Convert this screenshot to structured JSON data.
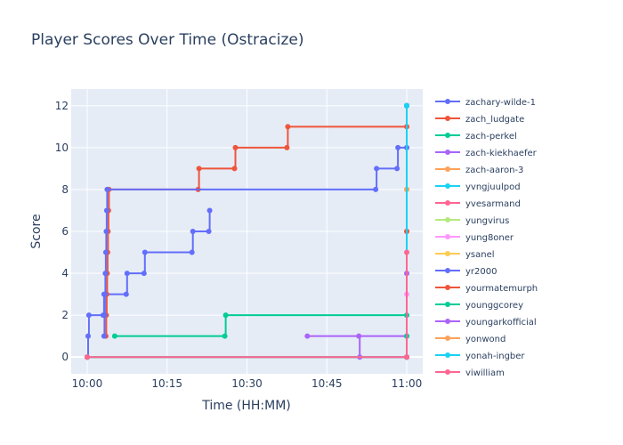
{
  "chart_data": {
    "type": "line",
    "title": "Player Scores Over Time (Ostracize)",
    "xlabel": "Time (HH:MM)",
    "ylabel": "Score",
    "xlim": [
      "09:57",
      "11:03"
    ],
    "ylim": [
      -0.8,
      12.8
    ],
    "x_ticks": [
      "10:00",
      "10:15",
      "10:30",
      "10:45",
      "11:00"
    ],
    "y_ticks": [
      0,
      2,
      4,
      6,
      8,
      10,
      12
    ],
    "grid": true,
    "legend_position": "right",
    "line_shape": "step",
    "series": [
      {
        "name": "zachary-wilde-1",
        "color": "#636efa",
        "points": [
          [
            "10:00:00",
            0
          ],
          [
            "10:00:10",
            1
          ],
          [
            "10:00:20",
            2
          ],
          [
            "10:03:00",
            2
          ],
          [
            "10:03:10",
            3
          ],
          [
            "10:07:20",
            3
          ],
          [
            "10:07:30",
            4
          ],
          [
            "10:10:40",
            4
          ],
          [
            "10:10:50",
            5
          ],
          [
            "10:19:40",
            5
          ],
          [
            "10:19:50",
            6
          ],
          [
            "10:22:50",
            6
          ],
          [
            "10:23:00",
            7
          ]
        ]
      },
      {
        "name": "zach_ludgate",
        "color": "#ef553b",
        "points": [
          [
            "10:03:30",
            1
          ],
          [
            "10:03:35",
            2
          ],
          [
            "10:03:40",
            3
          ],
          [
            "10:03:45",
            4
          ],
          [
            "10:03:50",
            5
          ],
          [
            "10:03:55",
            6
          ],
          [
            "10:04:00",
            7
          ],
          [
            "10:04:05",
            8
          ],
          [
            "10:20:50",
            8
          ],
          [
            "10:21:00",
            9
          ],
          [
            "10:27:40",
            9
          ],
          [
            "10:27:50",
            10
          ],
          [
            "10:37:30",
            10
          ],
          [
            "10:37:40",
            11
          ],
          [
            "11:00:00",
            11
          ],
          [
            "11:00:00",
            12
          ]
        ]
      },
      {
        "name": "zach-perkel",
        "color": "#00cc96",
        "points": [
          [
            "10:05:10",
            1
          ],
          [
            "10:25:50",
            1
          ],
          [
            "10:26:00",
            2
          ],
          [
            "11:00:00",
            2
          ],
          [
            "11:00:00",
            12
          ]
        ]
      },
      {
        "name": "zach-kiekhaefer",
        "color": "#ab63fa",
        "points": [
          [
            "10:41:20",
            1
          ],
          [
            "11:00:00",
            1
          ],
          [
            "11:00:00",
            12
          ]
        ]
      },
      {
        "name": "zach-aaron-3",
        "color": "#ffa15a",
        "points": [
          [
            "10:00:00",
            0
          ],
          [
            "11:00:00",
            0
          ],
          [
            "11:00:00",
            8
          ]
        ]
      },
      {
        "name": "yvngjuulpod",
        "color": "#19d3f3",
        "points": [
          [
            "10:00:00",
            0
          ],
          [
            "11:00:00",
            0
          ],
          [
            "11:00:00",
            12
          ]
        ]
      },
      {
        "name": "yvesarmand",
        "color": "#ff6692",
        "points": [
          [
            "10:00:00",
            0
          ],
          [
            "11:00:00",
            0
          ],
          [
            "11:00:00",
            6
          ]
        ]
      },
      {
        "name": "yungvirus",
        "color": "#b6e880",
        "points": [
          [
            "10:00:00",
            0
          ],
          [
            "11:00:00",
            0
          ],
          [
            "11:00:00",
            8
          ]
        ]
      },
      {
        "name": "yung8oner",
        "color": "#ff97ff",
        "points": [
          [
            "10:00:00",
            0
          ],
          [
            "11:00:00",
            0
          ],
          [
            "11:00:00",
            3
          ]
        ]
      },
      {
        "name": "ysanel",
        "color": "#fecb52",
        "points": [
          [
            "10:00:00",
            0
          ],
          [
            "11:00:00",
            0
          ],
          [
            "11:00:00",
            8
          ]
        ]
      },
      {
        "name": "yr2000",
        "color": "#636efa",
        "points": [
          [
            "10:03:10",
            1
          ],
          [
            "10:03:15",
            2
          ],
          [
            "10:03:20",
            3
          ],
          [
            "10:03:25",
            4
          ],
          [
            "10:03:30",
            5
          ],
          [
            "10:03:35",
            6
          ],
          [
            "10:03:40",
            7
          ],
          [
            "10:03:45",
            8
          ],
          [
            "10:54:10",
            8
          ],
          [
            "10:54:20",
            9
          ],
          [
            "10:58:10",
            9
          ],
          [
            "10:58:20",
            10
          ],
          [
            "11:00:00",
            10
          ],
          [
            "11:00:00",
            12
          ]
        ]
      },
      {
        "name": "yourmatemurph",
        "color": "#ef553b",
        "points": [
          [
            "10:00:00",
            0
          ],
          [
            "11:00:00",
            0
          ],
          [
            "11:00:00",
            6
          ]
        ]
      },
      {
        "name": "younggcorey",
        "color": "#00cc96",
        "points": [
          [
            "10:00:00",
            0
          ],
          [
            "11:00:00",
            0
          ],
          [
            "11:00:00",
            1
          ]
        ]
      },
      {
        "name": "youngarkofficial",
        "color": "#ab63fa",
        "points": [
          [
            "10:51:00",
            1
          ],
          [
            "10:51:10",
            0
          ],
          [
            "11:00:00",
            0
          ],
          [
            "11:00:00",
            4
          ]
        ]
      },
      {
        "name": "yonwond",
        "color": "#ffa15a",
        "points": [
          [
            "10:00:00",
            0
          ],
          [
            "11:00:00",
            0
          ],
          [
            "11:00:00",
            8
          ]
        ]
      },
      {
        "name": "yonah-ingber",
        "color": "#19d3f3",
        "points": [
          [
            "10:00:00",
            0
          ],
          [
            "11:00:00",
            0
          ],
          [
            "11:00:00",
            12
          ]
        ]
      },
      {
        "name": "yiwilliam",
        "color": "#ff6692",
        "points": [
          [
            "10:00:00",
            0
          ],
          [
            "11:00:00",
            0
          ],
          [
            "11:00:00",
            5
          ]
        ]
      }
    ]
  }
}
